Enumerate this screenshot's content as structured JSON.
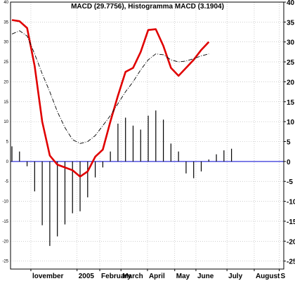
{
  "chart_data": {
    "type": "line",
    "title": "MACD (29.7756), Histogramma MACD (3.1904)",
    "ylim": [
      -27,
      40
    ],
    "xlim": [
      0,
      35
    ],
    "y_ticks": [
      -25,
      -20,
      -15,
      -10,
      -5,
      0,
      5,
      10,
      15,
      20,
      25,
      30,
      35,
      40
    ],
    "y_tick_labels_right": [
      "-25",
      "-20",
      "-15",
      "-10",
      "-5",
      "0",
      "5",
      "10",
      "15",
      "20",
      "25",
      "30",
      "35",
      "40"
    ],
    "y_tick_labels_left": [
      "-25",
      "-20",
      "-15",
      "-10",
      "-5",
      "0",
      "5",
      "10",
      "15",
      "20",
      "25",
      "30",
      "35",
      "40"
    ],
    "x_tick_labels": [
      {
        "label": "lovember",
        "pos": 2.5
      },
      {
        "label": "2005",
        "pos": 8.6
      },
      {
        "label": "February",
        "pos": 11.6
      },
      {
        "label": "March",
        "pos": 14.4
      },
      {
        "label": "April",
        "pos": 17.9
      },
      {
        "label": "May",
        "pos": 21.5
      },
      {
        "label": "June",
        "pos": 24.3
      },
      {
        "label": "July",
        "pos": 28.4
      },
      {
        "label": "August",
        "pos": 32.0
      },
      {
        "label": "S",
        "pos": 35.3
      }
    ],
    "grid": true,
    "series": [
      {
        "kind": "line",
        "color": "#e00000",
        "style": "solid",
        "x": [
          0,
          1,
          2,
          3,
          4,
          5,
          6,
          7,
          8,
          9,
          10,
          11,
          12,
          13,
          14,
          15,
          16,
          17,
          18,
          19,
          20,
          21,
          22,
          23,
          24,
          25,
          26
        ],
        "values": [
          35.5,
          35.2,
          33.5,
          24.0,
          10.0,
          1.5,
          -0.8,
          -1.5,
          -2.2,
          -3.8,
          -2.5,
          1.2,
          3.0,
          10.0,
          16.5,
          22.5,
          23.5,
          27.5,
          33.0,
          33.2,
          29.0,
          23.5,
          21.5,
          23.5,
          25.5,
          28.0,
          30.0
        ]
      },
      {
        "kind": "line",
        "color": "#000000",
        "style": "dashed",
        "x": [
          0,
          1,
          2,
          3,
          4,
          5,
          6,
          7,
          8,
          9,
          10,
          11,
          12,
          13,
          14,
          15,
          16,
          17,
          18,
          19,
          20,
          21,
          22,
          23,
          24,
          25,
          26
        ],
        "values": [
          32.0,
          32.8,
          31.5,
          27.0,
          22.0,
          17.5,
          12.5,
          8.5,
          5.5,
          4.5,
          5.0,
          6.5,
          9.0,
          11.5,
          14.5,
          17.5,
          20.0,
          23.0,
          25.5,
          27.0,
          26.8,
          25.5,
          25.0,
          25.2,
          25.8,
          26.5,
          27.0
        ]
      },
      {
        "kind": "bar",
        "color": "#000000",
        "x": [
          0,
          1,
          2,
          3,
          4,
          5,
          6,
          7,
          8,
          9,
          10,
          11,
          12,
          13,
          14,
          15,
          16,
          17,
          18,
          19,
          20,
          21,
          22,
          23,
          24,
          25,
          26
        ],
        "values": [
          3.8,
          2.5,
          -1.2,
          -7.5,
          -16.0,
          -21.2,
          -18.8,
          -15.8,
          -13.0,
          -12.5,
          -9.0,
          -4.0,
          -1.5,
          2.5,
          9.5,
          11.0,
          9.0,
          8.0,
          11.5,
          12.8,
          10.5,
          4.5,
          2.5,
          -3.0,
          -4.2,
          -2.5,
          0.5
        ]
      },
      {
        "kind": "bar",
        "color": "#000000",
        "x": [
          27,
          28,
          29
        ],
        "values": [
          1.8,
          2.8,
          3.2
        ]
      }
    ]
  }
}
